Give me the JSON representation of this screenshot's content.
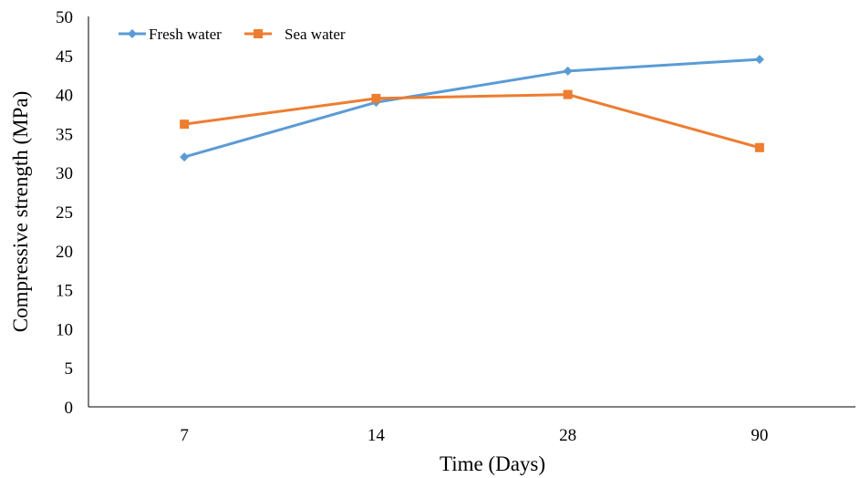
{
  "chart_data": {
    "type": "line",
    "title": "",
    "xlabel": "Time (Days)",
    "ylabel": "Compressive strength (MPa)",
    "categories": [
      "7",
      "14",
      "28",
      "90"
    ],
    "ylim": [
      0,
      50
    ],
    "yticks": [
      0,
      5,
      10,
      15,
      20,
      25,
      30,
      35,
      40,
      45,
      50
    ],
    "grid": false,
    "legend": "top-left",
    "series": [
      {
        "name": "Fresh water",
        "color": "#5B9BD5",
        "marker": "diamond",
        "values": [
          32.0,
          39.0,
          43.0,
          44.5
        ]
      },
      {
        "name": "Sea water",
        "color": "#ED7D31",
        "marker": "square",
        "values": [
          36.2,
          39.5,
          40.0,
          33.2
        ]
      }
    ]
  }
}
